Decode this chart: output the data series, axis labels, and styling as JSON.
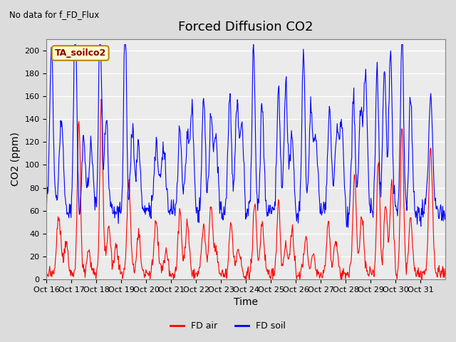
{
  "title": "Forced Diffusion CO2",
  "top_left_text": "No data for f_FD_Flux",
  "legend_label": "TA_soilco2",
  "ylabel": "CO2 (ppm)",
  "xlabel": "Time",
  "ylim": [
    0,
    210
  ],
  "yticks": [
    0,
    20,
    40,
    60,
    80,
    100,
    120,
    140,
    160,
    180,
    200
  ],
  "xtick_labels": [
    "Oct 16",
    "Oct 17",
    "Oct 18",
    "Oct 19",
    "Oct 20",
    "Oct 21",
    "Oct 22",
    "Oct 23",
    "Oct 24",
    "Oct 25",
    "Oct 26",
    "Oct 27",
    "Oct 28",
    "Oct 29",
    "Oct 30",
    "Oct 31"
  ],
  "color_air": "#FF0000",
  "color_soil": "#0000FF",
  "legend_air": "FD air",
  "legend_soil": "FD soil",
  "fig_bg_color": "#DCDCDC",
  "plot_bg_color": "#EBEBEB",
  "title_fontsize": 13,
  "axis_fontsize": 10,
  "tick_fontsize": 8
}
